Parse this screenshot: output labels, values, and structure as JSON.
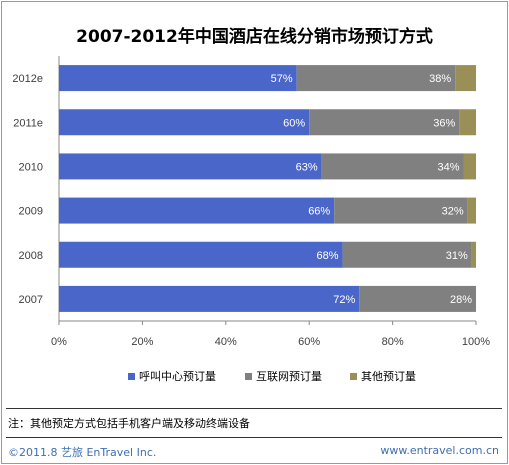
{
  "chart_data": {
    "type": "bar",
    "orientation": "horizontal",
    "stacked": true,
    "title": "2007-2012年中国酒店在线分销市场预订方式",
    "categories": [
      "2012e",
      "2011e",
      "2010",
      "2009",
      "2008",
      "2007"
    ],
    "series": [
      {
        "name": "呼叫中心预订量",
        "color": "#4a66c9",
        "values": [
          57,
          60,
          63,
          66,
          68,
          72
        ],
        "labels": [
          "57%",
          "60%",
          "63%",
          "66%",
          "68%",
          "72%"
        ]
      },
      {
        "name": "互联网预订量",
        "color": "#808080",
        "values": [
          38,
          36,
          34,
          32,
          31,
          28
        ],
        "labels": [
          "38%",
          "36%",
          "34%",
          "32%",
          "31%",
          "28%"
        ]
      },
      {
        "name": "其他预订量",
        "color": "#9a8f57",
        "values": [
          5,
          4,
          3,
          2,
          1,
          0
        ]
      }
    ],
    "xlim": [
      0,
      100
    ],
    "xticks": [
      "0%",
      "20%",
      "40%",
      "60%",
      "80%",
      "100%"
    ],
    "legend_position": "bottom",
    "grid": false
  },
  "note": "注：其他预定方式包括手机客户端及移动终端设备",
  "footer": {
    "copyright": "©2011.8 艺旅 EnTravel Inc.",
    "website": "www.entravel.com.cn"
  }
}
